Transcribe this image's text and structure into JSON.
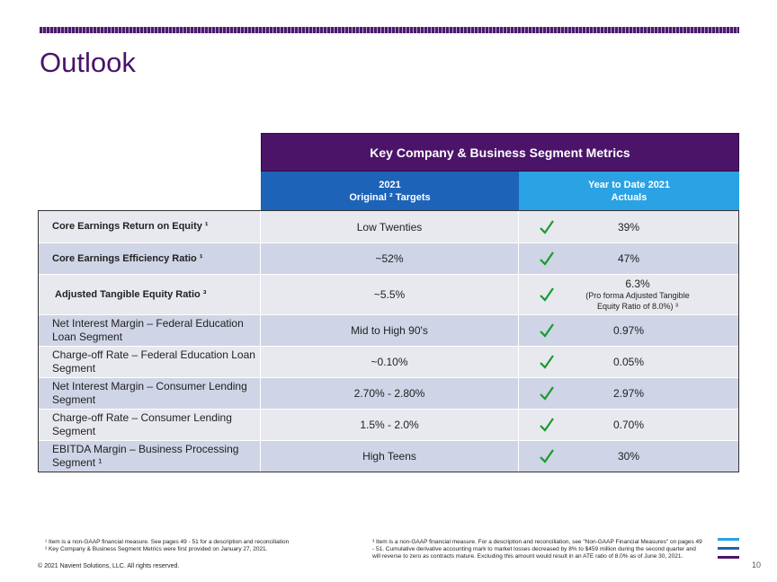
{
  "slide": {
    "title": "Outlook",
    "page_number": "10",
    "copyright": "© 2021 Navient Solutions, LLC. All rights reserved."
  },
  "table": {
    "header": "Key Company & Business Segment Metrics",
    "col2_line1": "2021",
    "col2_line2": "Original ² Targets",
    "col3_line1": "Year to Date 2021",
    "col3_line2": "Actuals",
    "rows": [
      {
        "metric": "Core Earnings Return on Equity ¹",
        "target": "Low Twenties",
        "actual": "39%",
        "check_icon": "checkmark-icon"
      },
      {
        "metric": "Core Earnings Efficiency Ratio ¹",
        "target": "~52%",
        "actual": "47%",
        "check_icon": "checkmark-icon"
      },
      {
        "metric": "Adjusted Tangible Equity Ratio ³",
        "target": "~5.5%",
        "actual": "6.3%",
        "actual_note": "(Pro forma Adjusted Tangible Equity Ratio of 8.0%) ³",
        "check_icon": "checkmark-icon"
      },
      {
        "metric": "Net Interest Margin – Federal Education Loan Segment",
        "target": "Mid to High 90's",
        "actual": "0.97%",
        "check_icon": "checkmark-icon"
      },
      {
        "metric": "Charge-off Rate – Federal Education Loan Segment",
        "target": "~0.10%",
        "actual": "0.05%",
        "check_icon": "checkmark-icon"
      },
      {
        "metric": "Net Interest Margin – Consumer Lending Segment",
        "target": "2.70% - 2.80%",
        "actual": "2.97%",
        "check_icon": "checkmark-icon"
      },
      {
        "metric": "Charge-off Rate – Consumer Lending Segment",
        "target": "1.5% - 2.0%",
        "actual": "0.70%",
        "check_icon": "checkmark-icon"
      },
      {
        "metric": "EBITDA Margin – Business Processing Segment ¹",
        "target": "High Teens",
        "actual": "30%",
        "check_icon": "checkmark-icon"
      }
    ]
  },
  "footnotes": {
    "fn1": "¹ Item is a non-GAAP financial measure.  See pages 49 - 51  for a description and reconciliation",
    "fn2": "² Key Company & Business Segment Metrics were first provided on  January 27, 2021.",
    "fn3": "³ Item is a non-GAAP financial measure. For a description and reconciliation, see \"Non-GAAP Financial Measures\" on pages 49 - 51. Cumulative derivative accounting mark to market losses decreased by 8% to $459 million during the second quarter and will reverse to zero as contracts mature.  Excluding this amount would result in an ATE ratio of 8.0% as of June 30, 2021."
  },
  "colors": {
    "brand_purple": "#4a1369",
    "header_blue": "#1d63b8",
    "header_light_blue": "#2aa2e3",
    "check_green": "#1a9c2a"
  },
  "logo": {
    "icon": "navient-stripes-icon"
  }
}
